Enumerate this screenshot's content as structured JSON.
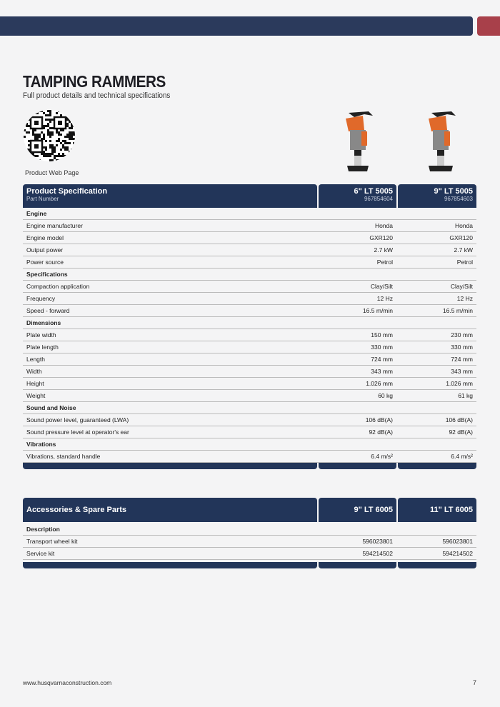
{
  "header": {
    "title": "TAMPING RAMMERS",
    "subtitle": "Full product details and technical specifications",
    "qr_label": "Product Web Page"
  },
  "colors": {
    "navy": "#223559",
    "red": "#a8404a",
    "orange": "#e0692a"
  },
  "spec": {
    "title": "Product Specification",
    "subtitle": "Part Number",
    "models": [
      {
        "name": "6\" LT 5005",
        "part": "967854604"
      },
      {
        "name": "9\" LT 5005",
        "part": "967854603"
      }
    ],
    "rows": [
      {
        "section": "Engine"
      },
      {
        "label": "Engine manufacturer",
        "v": [
          "Honda",
          "Honda"
        ]
      },
      {
        "label": "Engine model",
        "v": [
          "GXR120",
          "GXR120"
        ]
      },
      {
        "label": "Output power",
        "v": [
          "2.7 kW",
          "2.7 kW"
        ]
      },
      {
        "label": "Power source",
        "v": [
          "Petrol",
          "Petrol"
        ]
      },
      {
        "section": "Specifications"
      },
      {
        "label": "Compaction application",
        "v": [
          "Clay/Silt",
          "Clay/Silt"
        ]
      },
      {
        "label": "Frequency",
        "v": [
          "12 Hz",
          "12 Hz"
        ]
      },
      {
        "label": "Speed - forward",
        "v": [
          "16.5 m/min",
          "16.5 m/min"
        ]
      },
      {
        "section": "Dimensions"
      },
      {
        "label": "Plate width",
        "v": [
          "150 mm",
          "230 mm"
        ]
      },
      {
        "label": "Plate length",
        "v": [
          "330 mm",
          "330 mm"
        ]
      },
      {
        "label": "Length",
        "v": [
          "724 mm",
          "724 mm"
        ]
      },
      {
        "label": "Width",
        "v": [
          "343 mm",
          "343 mm"
        ]
      },
      {
        "label": "Height",
        "v": [
          "1.026 mm",
          "1.026 mm"
        ]
      },
      {
        "label": "Weight",
        "v": [
          "60 kg",
          "61 kg"
        ]
      },
      {
        "section": "Sound and Noise"
      },
      {
        "label": "Sound power level, guaranteed (LWA)",
        "v": [
          "106 dB(A)",
          "106 dB(A)"
        ]
      },
      {
        "label": "Sound pressure level at operator's ear",
        "v": [
          "92 dB(A)",
          "92 dB(A)"
        ]
      },
      {
        "section": "Vibrations"
      },
      {
        "label": "Vibrations, standard handle",
        "v": [
          "6.4 m/s²",
          "6.4 m/s²"
        ]
      }
    ]
  },
  "accessories": {
    "title": "Accessories & Spare Parts",
    "models": [
      "9\" LT 6005",
      "11\" LT 6005"
    ],
    "rows": [
      {
        "section": "Description"
      },
      {
        "label": "Transport wheel kit",
        "v": [
          "596023801",
          "596023801"
        ]
      },
      {
        "label": "Service kit",
        "v": [
          "594214502",
          "594214502"
        ]
      }
    ]
  },
  "footer": {
    "url": "www.husqvarnaconstruction.com",
    "page": "7"
  }
}
